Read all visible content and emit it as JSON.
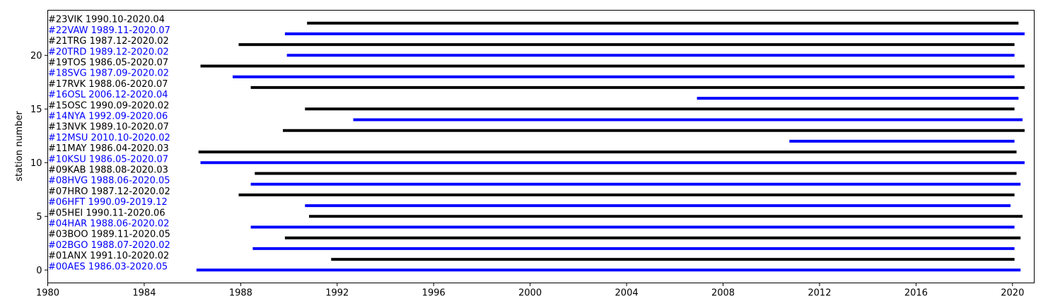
{
  "chart_data": {
    "type": "timeline",
    "xlabel": "",
    "ylabel": "station number",
    "xlim": [
      1980,
      2020.9
    ],
    "ylim": [
      -1.2,
      24.2
    ],
    "x_ticks": [
      "1980",
      "1984",
      "1988",
      "1992",
      "1996",
      "2000",
      "2004",
      "2008",
      "2012",
      "2016",
      "2020"
    ],
    "y_ticks": [
      "0",
      "5",
      "10",
      "15",
      "20"
    ],
    "grid": false,
    "colors": {
      "even": "#0000ff",
      "odd": "#000000"
    },
    "stations": [
      {
        "id": 0,
        "label": "#00AES 1986.03-2020.05",
        "start": "1986.03",
        "end": "2020.05"
      },
      {
        "id": 1,
        "label": "#01ANX 1991.10-2020.02",
        "start": "1991.10",
        "end": "2020.02"
      },
      {
        "id": 2,
        "label": "#02BGO 1988.07-2020.02",
        "start": "1988.07",
        "end": "2020.02"
      },
      {
        "id": 3,
        "label": "#03BOO 1989.11-2020.05",
        "start": "1989.11",
        "end": "2020.05"
      },
      {
        "id": 4,
        "label": "#04HAR 1988.06-2020.02",
        "start": "1988.06",
        "end": "2020.02"
      },
      {
        "id": 5,
        "label": "#05HEI 1990.11-2020.06",
        "start": "1990.11",
        "end": "2020.06"
      },
      {
        "id": 6,
        "label": "#06HFT 1990.09-2019.12",
        "start": "1990.09",
        "end": "2019.12"
      },
      {
        "id": 7,
        "label": "#07HRO 1987.12-2020.02",
        "start": "1987.12",
        "end": "2020.02"
      },
      {
        "id": 8,
        "label": "#08HVG 1988.06-2020.05",
        "start": "1988.06",
        "end": "2020.05"
      },
      {
        "id": 9,
        "label": "#09KAB 1988.08-2020.03",
        "start": "1988.08",
        "end": "2020.03"
      },
      {
        "id": 10,
        "label": "#10KSU 1986.05-2020.07",
        "start": "1986.05",
        "end": "2020.07"
      },
      {
        "id": 11,
        "label": "#11MAY 1986.04-2020.03",
        "start": "1986.04",
        "end": "2020.03"
      },
      {
        "id": 12,
        "label": "#12MSU 2010.10-2020.02",
        "start": "2010.10",
        "end": "2020.02"
      },
      {
        "id": 13,
        "label": "#13NVK 1989.10-2020.07",
        "start": "1989.10",
        "end": "2020.07"
      },
      {
        "id": 14,
        "label": "#14NYA 1992.09-2020.06",
        "start": "1992.09",
        "end": "2020.06"
      },
      {
        "id": 15,
        "label": "#15OSC 1990.09-2020.02",
        "start": "1990.09",
        "end": "2020.02"
      },
      {
        "id": 16,
        "label": "#16OSL 2006.12-2020.04",
        "start": "2006.12",
        "end": "2020.04"
      },
      {
        "id": 17,
        "label": "#17RVK 1988.06-2020.07",
        "start": "1988.06",
        "end": "2020.07"
      },
      {
        "id": 18,
        "label": "#18SVG 1987.09-2020.02",
        "start": "1987.09",
        "end": "2020.02"
      },
      {
        "id": 19,
        "label": "#19TOS 1986.05-2020.07",
        "start": "1986.05",
        "end": "2020.07"
      },
      {
        "id": 20,
        "label": "#20TRD 1989.12-2020.02",
        "start": "1989.12",
        "end": "2020.02"
      },
      {
        "id": 21,
        "label": "#21TRG 1987.12-2020.02",
        "start": "1987.12",
        "end": "2020.02"
      },
      {
        "id": 22,
        "label": "#22VAW 1989.11-2020.07",
        "start": "1989.11",
        "end": "2020.07"
      },
      {
        "id": 23,
        "label": "#23VIK 1990.10-2020.04",
        "start": "1990.10",
        "end": "2020.04"
      }
    ]
  }
}
